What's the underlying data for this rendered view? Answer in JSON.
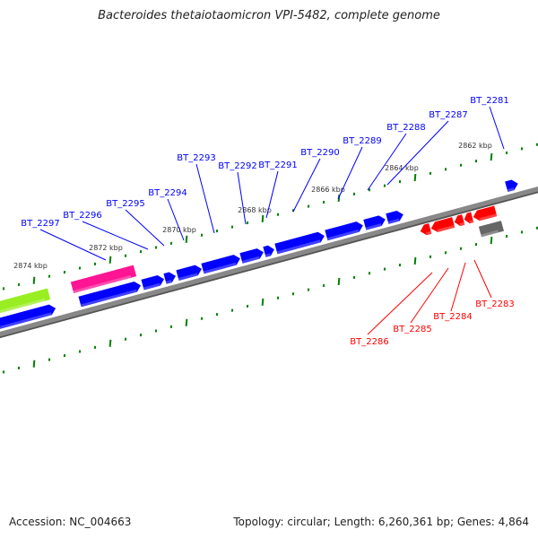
{
  "title": "Bacteroides thetaiotaomicron VPI-5482, complete genome",
  "footer": {
    "accession": "Accession: NC_004663",
    "topology": "Topology: circular; Length: 6,260,361 bp; Genes: 4,864"
  },
  "colors": {
    "forward": "#0000ff",
    "reverse": "#ff0000",
    "backbone": "#808080",
    "ticks": "#008000",
    "pink": "#ff1493",
    "green": "#99ee22",
    "gray_gene": "#666666"
  },
  "kbp_labels": [
    "2874 kbp",
    "2872 kbp",
    "2870 kbp",
    "2868 kbp",
    "2866 kbp",
    "2864 kbp",
    "2862 kbp"
  ],
  "forward_genes": [
    "BT_2297",
    "BT_2296",
    "BT_2295",
    "BT_2294",
    "BT_2293",
    "BT_2292",
    "BT_2291",
    "BT_2290",
    "BT_2289",
    "BT_2288",
    "BT_2287",
    "BT_2281"
  ],
  "reverse_genes": [
    "BT_2286",
    "BT_2285",
    "BT_2284",
    "BT_2283"
  ]
}
